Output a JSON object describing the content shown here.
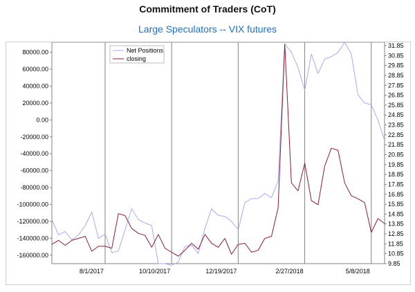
{
  "header": {
    "title": "Commitment of Traders (CoT)",
    "subtitle": "Large Speculators -- VIX futures"
  },
  "chart_data": {
    "type": "line",
    "xlim": [
      0,
      50
    ],
    "x_ticks": [
      {
        "x": 8,
        "label": "8/1/2017"
      },
      {
        "x": 18,
        "label": "10/10/2017"
      },
      {
        "x": 28,
        "label": "12/19/2017"
      },
      {
        "x": 38,
        "label": "2/27/2018"
      },
      {
        "x": 48,
        "label": "5/8/2018"
      }
    ],
    "y_left": {
      "ylim": [
        -170000,
        92000
      ],
      "ticks": [
        {
          "v": 80000,
          "label": "80000.00"
        },
        {
          "v": 60000,
          "label": "60000.00"
        },
        {
          "v": 40000,
          "label": "40000.00"
        },
        {
          "v": 20000,
          "label": "20000.00"
        },
        {
          "v": 0,
          "label": "0.00"
        },
        {
          "v": -20000,
          "label": "-20000.00"
        },
        {
          "v": -40000,
          "label": "-40000.00"
        },
        {
          "v": -60000,
          "label": "-60000.00"
        },
        {
          "v": -80000,
          "label": "-80000.00"
        },
        {
          "v": -100000,
          "label": "-100000.00"
        },
        {
          "v": -120000,
          "label": "-120000.00"
        },
        {
          "v": -140000,
          "label": "-140000.00"
        },
        {
          "v": -160000,
          "label": "-160000.00"
        }
      ]
    },
    "y_right": {
      "ylim": [
        9.85,
        32.2
      ],
      "ticks": [
        "31.85",
        "30.85",
        "29.85",
        "28.85",
        "27.85",
        "26.85",
        "25.85",
        "24.85",
        "23.85",
        "22.85",
        "21.85",
        "20.85",
        "19.85",
        "18.85",
        "17.85",
        "16.85",
        "15.85",
        "14.85",
        "13.85",
        "12.85",
        "11.85",
        "10.85",
        "9.85"
      ]
    },
    "legend": {
      "placement": "top-left",
      "entries": [
        "Net Positions",
        "closing"
      ]
    },
    "grid": "vertical",
    "colors": {
      "net_positions": "#a9a9f0",
      "closing": "#8b1a3a",
      "grid": "#808080"
    },
    "series": [
      {
        "name": "Net Positions",
        "axis": "left",
        "values": [
          -118000,
          -136000,
          -132000,
          -142000,
          -136000,
          -125000,
          -109000,
          -140000,
          -135000,
          -157000,
          -155000,
          -130000,
          -105000,
          -118000,
          -122000,
          -125000,
          -170000,
          -170000,
          -172000,
          -168000,
          -150000,
          -148000,
          -158000,
          -128000,
          -105000,
          -113000,
          -114000,
          -120000,
          -130000,
          -98000,
          -93000,
          -93000,
          -87000,
          -92000,
          -72000,
          90000,
          80000,
          62000,
          35000,
          78000,
          55000,
          72000,
          75000,
          80000,
          92000,
          78000,
          30000,
          20000,
          18000,
          0,
          -24000
        ]
      },
      {
        "name": "closing",
        "axis": "right",
        "values": [
          11.8,
          12.2,
          11.7,
          12.2,
          12.4,
          12.6,
          11.1,
          11.6,
          11.6,
          11.4,
          14.9,
          14.7,
          13.4,
          12.9,
          12.7,
          11.5,
          12.8,
          11.4,
          11.0,
          10.6,
          11.2,
          11.9,
          11.3,
          12.8,
          11.9,
          11.5,
          12.4,
          10.8,
          11.8,
          11.9,
          11.0,
          11.2,
          12.4,
          12.6,
          15.5,
          32.0,
          18.0,
          17.2,
          20.0,
          16.2,
          15.8,
          19.7,
          21.5,
          21.3,
          18.0,
          16.7,
          16.4,
          16.0,
          13.0,
          14.4,
          13.9
        ]
      }
    ]
  }
}
